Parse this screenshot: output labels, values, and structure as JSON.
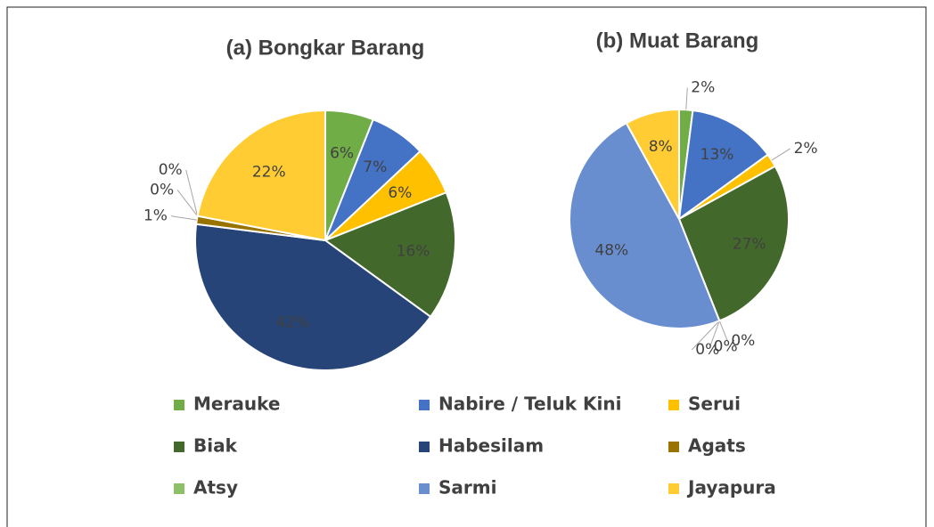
{
  "legend": {
    "labels": [
      "Merauke",
      "Nabire / Teluk Kini",
      "Serui",
      "Biak",
      "Habesilam",
      "Agats",
      "Atsy",
      "Sarmi",
      "Jayapura"
    ],
    "colors": [
      "#70ad47",
      "#4472c4",
      "#ffc000",
      "#43682b",
      "#264478",
      "#997300",
      "#8cc168",
      "#698ed0",
      "#ffcd33"
    ]
  },
  "chart_data": [
    {
      "type": "pie",
      "title": "(a) Bongkar Barang",
      "values": [
        6,
        7,
        6,
        16,
        42,
        1,
        0,
        0,
        22
      ],
      "value_labels": [
        "6%",
        "7%",
        "6%",
        "16%",
        "42%",
        "1%",
        "0%",
        "0%",
        "22%"
      ]
    },
    {
      "type": "pie",
      "title": "(b) Muat Barang",
      "values": [
        2,
        13,
        2,
        27,
        0,
        0,
        0,
        48,
        8
      ],
      "value_labels": [
        "2%",
        "13%",
        "2%",
        "27%",
        "0%",
        "0%",
        "0%",
        "48%",
        "8%"
      ]
    }
  ]
}
